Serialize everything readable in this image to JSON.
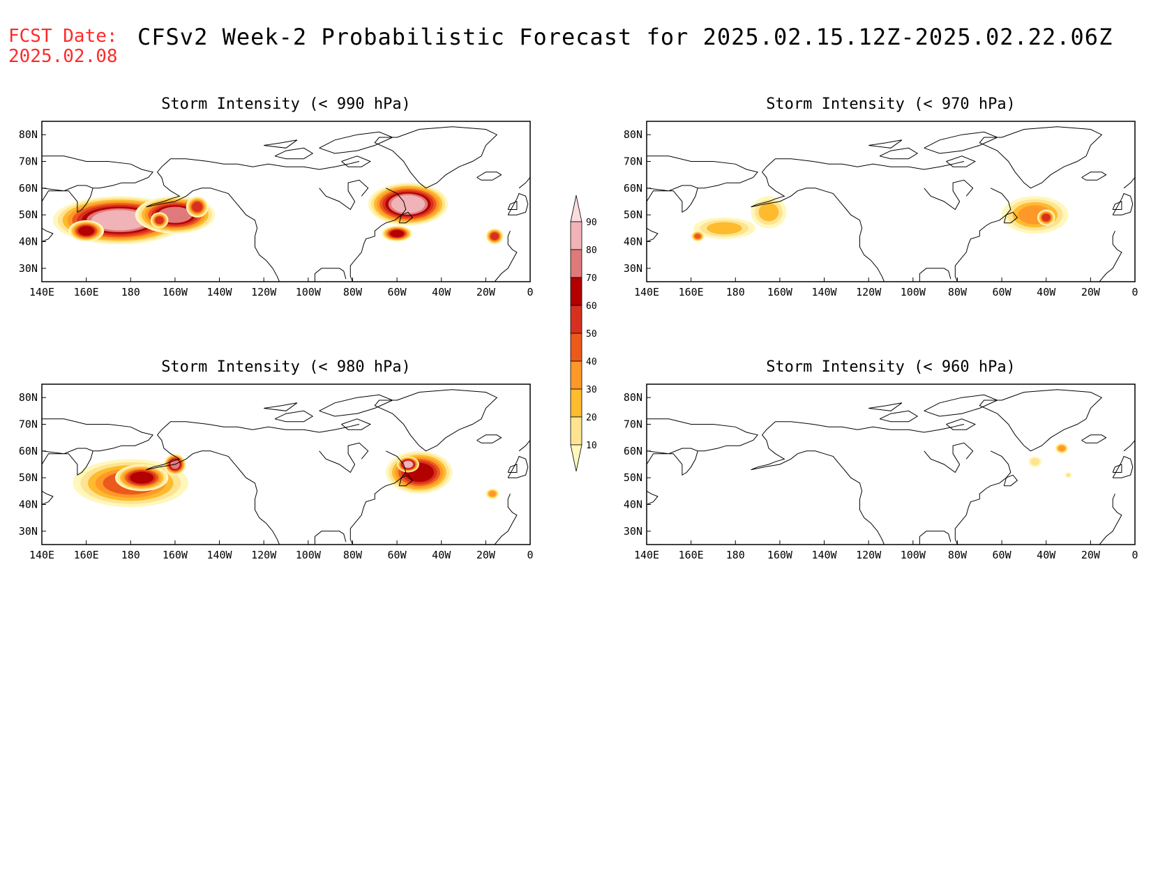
{
  "header": {
    "fcst_label": "FCST Date:",
    "fcst_date": "2025.02.08",
    "title": "CFSv2 Week-2 Probabilistic Forecast for 2025.02.15.12Z-2025.02.22.06Z"
  },
  "lon_ticks": [
    "140E",
    "160E",
    "180",
    "160W",
    "140W",
    "120W",
    "100W",
    "80W",
    "60W",
    "40W",
    "20W",
    "0"
  ],
  "lat_ticks": [
    "80N",
    "70N",
    "60N",
    "50N",
    "40N",
    "30N"
  ],
  "colors": {
    "levels": [
      10,
      20,
      30,
      40,
      50,
      60,
      70,
      80,
      90
    ],
    "fills": [
      "#fff7bc",
      "#fee391",
      "#fdbb2d",
      "#fe9929",
      "#ec5a1b",
      "#d7301f",
      "#b30000",
      "#e07a7a",
      "#f0b3b7",
      "#fbdcdf"
    ]
  },
  "colorbar": {
    "labels": [
      "90",
      "80",
      "70",
      "60",
      "50",
      "40",
      "30",
      "20",
      "10"
    ]
  },
  "panels": [
    {
      "id": "p990",
      "title": "Storm Intensity (< 990 hPa)",
      "blobs": [
        {
          "lon": 175,
          "lat": 48,
          "rlon": 30,
          "rlat": 9,
          "p": 82
        },
        {
          "lon": 200,
          "lat": 50,
          "rlon": 18,
          "rlat": 7,
          "p": 80
        },
        {
          "lon": 160,
          "lat": 44,
          "rlon": 8,
          "rlat": 4,
          "p": 70
        },
        {
          "lon": 193,
          "lat": 48,
          "rlon": 4,
          "rlat": 3,
          "p": 60
        },
        {
          "lon": 210,
          "lat": 53,
          "rlon": 5,
          "rlat": 4,
          "p": 55
        },
        {
          "lon": 305,
          "lat": 54,
          "rlon": 18,
          "rlat": 8,
          "p": 86
        },
        {
          "lon": 300,
          "lat": 43,
          "rlon": 7,
          "rlat": 3,
          "p": 65
        },
        {
          "lon": 344,
          "lat": 42,
          "rlon": 4,
          "rlat": 3,
          "p": 55
        }
      ]
    },
    {
      "id": "p970",
      "title": "Storm Intensity (< 970 hPa)",
      "blobs": [
        {
          "lon": 175,
          "lat": 45,
          "rlon": 14,
          "rlat": 4,
          "p": 30
        },
        {
          "lon": 195,
          "lat": 51,
          "rlon": 8,
          "rlat": 6,
          "p": 25
        },
        {
          "lon": 163,
          "lat": 42,
          "rlon": 3,
          "rlat": 2,
          "p": 45
        },
        {
          "lon": 315,
          "lat": 50,
          "rlon": 15,
          "rlat": 7,
          "p": 40
        },
        {
          "lon": 320,
          "lat": 49,
          "rlon": 4,
          "rlat": 3,
          "p": 55
        }
      ]
    },
    {
      "id": "p980",
      "title": "Storm Intensity (< 980 hPa)",
      "blobs": [
        {
          "lon": 180,
          "lat": 48,
          "rlon": 26,
          "rlat": 9,
          "p": 45
        },
        {
          "lon": 185,
          "lat": 50,
          "rlon": 12,
          "rlat": 5,
          "p": 62
        },
        {
          "lon": 200,
          "lat": 55,
          "rlon": 5,
          "rlat": 4,
          "p": 80
        },
        {
          "lon": 310,
          "lat": 52,
          "rlon": 15,
          "rlat": 8,
          "p": 62
        },
        {
          "lon": 305,
          "lat": 55,
          "rlon": 5,
          "rlat": 3,
          "p": 82
        },
        {
          "lon": 343,
          "lat": 44,
          "rlon": 3,
          "rlat": 2,
          "p": 40
        }
      ]
    },
    {
      "id": "p960",
      "title": "Storm Intensity (< 960 hPa)",
      "blobs": [
        {
          "lon": 327,
          "lat": 61,
          "rlon": 3,
          "rlat": 2,
          "p": 40
        },
        {
          "lon": 315,
          "lat": 56,
          "rlon": 3,
          "rlat": 2,
          "p": 15
        },
        {
          "lon": 330,
          "lat": 51,
          "rlon": 1.5,
          "rlat": 1,
          "p": 15
        }
      ]
    }
  ]
}
